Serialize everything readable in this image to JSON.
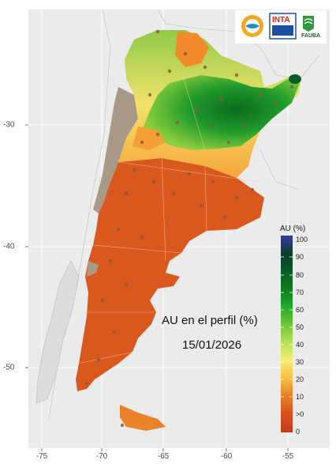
{
  "map": {
    "title": "AU en el perfil (%)",
    "date": "15/01/2026",
    "x_ticks": [
      "-75",
      "-70",
      "-65",
      "-60",
      "-55"
    ],
    "y_ticks": [
      "-30",
      "-40",
      "-50"
    ],
    "x_range_lon": [
      -77.5,
      -53
    ],
    "y_range_lat": [
      -56,
      -20.5
    ]
  },
  "legend": {
    "title": "AU (%)",
    "labels": [
      "100",
      "90",
      "80",
      "70",
      "60",
      "50",
      "40",
      "30",
      "20",
      "10",
      ">0",
      "0"
    ],
    "colors": [
      "#3a3aa0",
      "#0d3b2e",
      "#0a5a2a",
      "#0f7a1e",
      "#26a82a",
      "#6dc43a",
      "#b5de55",
      "#f3ef7a",
      "#f7c242",
      "#e8832a",
      "#d9521d",
      "#c43b17"
    ]
  },
  "logos": {
    "inta": "INTA",
    "fauba": "FAUBA"
  },
  "colors": {
    "dry": "#d85a1f",
    "wet": "#1f8a22",
    "no_data": "#a89a86",
    "panel_bg": "#ebebeb"
  }
}
